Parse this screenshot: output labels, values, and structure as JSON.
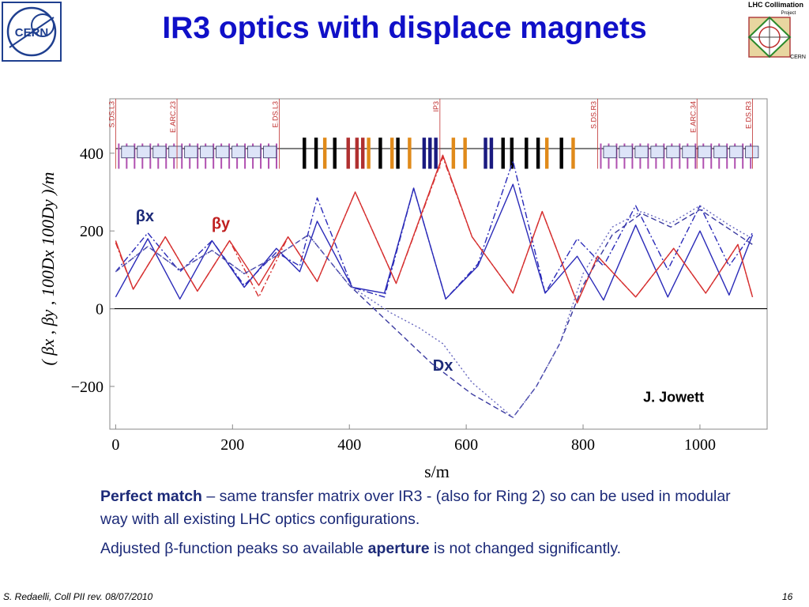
{
  "slide": {
    "title": "IR3 optics with displace magnets",
    "logo_left": {
      "icon": "cern-logo-icon",
      "text": "CERN"
    },
    "logo_right": {
      "icon": "lhc-collimation-logo-icon",
      "text_top": "LHC Collimation",
      "text_project": "Project",
      "text_bottom": "CERN"
    },
    "footer_left": "S. Redaelli, Coll PII rev. 08/07/2010",
    "page_number": "16",
    "body": [
      {
        "bold": "Perfect match",
        "rest": " – same transfer matrix over IR3 - (also for Ring 2) so can be used in modular way with all existing LHC optics configurations."
      },
      {
        "pre": "Adjusted β-function peaks so available ",
        "bold": "aperture",
        "post": " is not changed significantly."
      }
    ]
  },
  "chart_data": {
    "type": "line",
    "xlabel": "s/m",
    "ylabel": "( βx , βy , 100Dx  100Dy )/m",
    "xlim": [
      -10,
      1115
    ],
    "ylim": [
      -310,
      540
    ],
    "xticks": [
      0,
      200,
      400,
      600,
      800,
      1000
    ],
    "yticks": [
      -200,
      0,
      200,
      400
    ],
    "grid": false,
    "colors": {
      "betax": "#2a2ab8",
      "betay": "#d63030",
      "dispersion": "#3a3aa0",
      "frame": "#888888"
    },
    "section_markers": [
      {
        "label": "S.DS.L3",
        "s": 0
      },
      {
        "label": "E.ARC.23",
        "s": 105
      },
      {
        "label": "E.DS.L3",
        "s": 280
      },
      {
        "label": "IP3",
        "s": 555
      },
      {
        "label": "S.DS.R3",
        "s": 825
      },
      {
        "label": "E.ARC.34",
        "s": 995
      },
      {
        "label": "E.DS.R3",
        "s": 1090
      }
    ],
    "annotations": [
      {
        "text": "βx",
        "s": 50,
        "v": 225
      },
      {
        "text": "βy",
        "s": 180,
        "v": 205
      },
      {
        "text": "Dx",
        "s": 560,
        "v": -160
      },
      {
        "text": "J. Jowett",
        "s": 955,
        "v": -240
      }
    ],
    "series": [
      {
        "key": "bx1",
        "style": "solid",
        "color": "#2a2ab8",
        "x": [
          0,
          55,
          110,
          165,
          220,
          275,
          315,
          345,
          405,
          460,
          510,
          565,
          620,
          680,
          735,
          790,
          835,
          890,
          945,
          1000,
          1050,
          1090
        ],
        "values": [
          30,
          180,
          25,
          175,
          55,
          155,
          95,
          225,
          55,
          40,
          310,
          25,
          110,
          320,
          40,
          135,
          22,
          215,
          30,
          200,
          35,
          190
        ]
      },
      {
        "key": "bx2",
        "style": "dashdot",
        "color": "#2a2ab8",
        "x": [
          0,
          55,
          110,
          165,
          220,
          275,
          315,
          345,
          405,
          460,
          510,
          565,
          620,
          680,
          735,
          790,
          835,
          890,
          945,
          1000,
          1050,
          1090
        ],
        "values": [
          95,
          195,
          95,
          175,
          60,
          145,
          110,
          285,
          55,
          30,
          310,
          25,
          115,
          380,
          40,
          180,
          110,
          265,
          100,
          265,
          110,
          195
        ]
      },
      {
        "key": "by1",
        "style": "solid",
        "color": "#d63030",
        "x": [
          0,
          30,
          85,
          140,
          195,
          245,
          295,
          345,
          410,
          480,
          560,
          610,
          680,
          730,
          790,
          825,
          890,
          955,
          1010,
          1065,
          1090
        ],
        "values": [
          175,
          50,
          185,
          45,
          175,
          60,
          185,
          70,
          300,
          65,
          395,
          185,
          40,
          250,
          15,
          135,
          30,
          155,
          40,
          165,
          30
        ]
      },
      {
        "key": "by2",
        "style": "dashdot",
        "color": "#d63030",
        "x": [
          0,
          30,
          85,
          140,
          195,
          245,
          295,
          345,
          410,
          480,
          560,
          610,
          680,
          730,
          790,
          825,
          890,
          955,
          1010,
          1065,
          1090
        ],
        "values": [
          170,
          50,
          185,
          45,
          175,
          30,
          185,
          70,
          300,
          65,
          390,
          185,
          40,
          250,
          15,
          135,
          30,
          155,
          40,
          165,
          30
        ]
      },
      {
        "key": "dx1",
        "style": "dashed",
        "color": "#3a3aa0",
        "x": [
          0,
          55,
          110,
          165,
          220,
          280,
          330,
          400,
          470,
          540,
          610,
          680,
          720,
          760,
          800,
          850,
          900,
          950,
          1000,
          1050,
          1090
        ],
        "values": [
          95,
          160,
          100,
          150,
          90,
          140,
          190,
          60,
          -40,
          -140,
          -220,
          -280,
          -200,
          -90,
          60,
          190,
          245,
          210,
          255,
          205,
          165
        ]
      },
      {
        "key": "dx2",
        "style": "dotted",
        "color": "#6a6ac0",
        "x": [
          0,
          55,
          110,
          165,
          220,
          280,
          330,
          400,
          470,
          520,
          560,
          610,
          680,
          720,
          760,
          800,
          850,
          900,
          950,
          1000,
          1050,
          1090
        ],
        "values": [
          95,
          160,
          100,
          150,
          90,
          140,
          190,
          60,
          -10,
          -50,
          -90,
          -190,
          -280,
          -200,
          -90,
          90,
          210,
          250,
          220,
          265,
          215,
          180
        ]
      }
    ]
  }
}
